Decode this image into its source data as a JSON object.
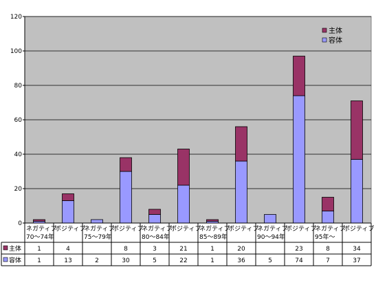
{
  "chart_data": {
    "type": "bar",
    "stacked": true,
    "title": "",
    "xlabel": "",
    "ylabel": "",
    "ylim": [
      0,
      120
    ],
    "yticks": [
      0,
      20,
      40,
      60,
      80,
      100,
      120
    ],
    "grid": true,
    "legend_position": "top-right",
    "categories": [
      [
        "ネガティブ",
        "70～74年"
      ],
      [
        "ポジティブ",
        ""
      ],
      [
        "ネガティブ",
        "75～79年"
      ],
      [
        "ポジティブ",
        ""
      ],
      [
        "ネガティブ",
        "80～84年"
      ],
      [
        "ポジティブ",
        ""
      ],
      [
        "ネガティブ",
        "85～89年"
      ],
      [
        "ポジティブ",
        ""
      ],
      [
        "ネガティブ",
        "90～94年"
      ],
      [
        "ポジティブ",
        ""
      ],
      [
        "ネガティブ",
        "95年～"
      ],
      [
        "ポジティブ",
        ""
      ]
    ],
    "series": [
      {
        "name": "容体",
        "color": "#9999ff",
        "stack_order": 0,
        "values": [
          1,
          13,
          2,
          30,
          5,
          22,
          1,
          36,
          5,
          74,
          7,
          37
        ]
      },
      {
        "name": "主体",
        "color": "#993366",
        "stack_order": 1,
        "values": [
          1,
          4,
          null,
          8,
          3,
          21,
          1,
          20,
          null,
          23,
          8,
          34
        ]
      }
    ],
    "legend_order": [
      "主体",
      "容体"
    ],
    "table_rows": [
      "主体",
      "容体"
    ],
    "plot_background": "#c0c0c0"
  }
}
